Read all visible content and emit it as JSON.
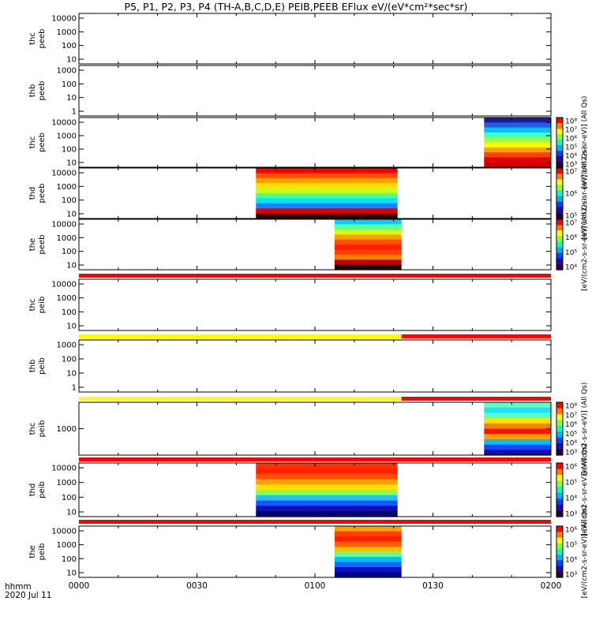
{
  "title": "P5, P1, P2, P3, P4 (TH-A,B,C,D,E) PEIB,PEEB EFlux eV/(eV*cm²*sec*sr)",
  "footer": {
    "time_format": "hhmm",
    "date": "2020 Jul 11"
  },
  "chart_data": {
    "type": "heatmap",
    "x_ticks": [
      "0000",
      "0030",
      "0100",
      "0130",
      "0200"
    ],
    "x_range_minutes": [
      0,
      120
    ],
    "panels": [
      {
        "id": "thc-peeb",
        "labels": [
          "thc",
          "peeb"
        ],
        "yticks": [
          "10",
          "100",
          "1000",
          "10000"
        ],
        "blocks": []
      },
      {
        "id": "thb-peeb",
        "labels": [
          "thb",
          "peeb"
        ],
        "yticks": [
          "1",
          "10",
          "100",
          "1000"
        ],
        "blocks": []
      },
      {
        "id": "thc-peeb-2",
        "labels": [
          "thc",
          "peeb"
        ],
        "yticks": [
          "10",
          "100",
          "1000",
          "10000"
        ],
        "blocks": [
          {
            "start": 103,
            "end": 120,
            "profile": "electron_c"
          }
        ],
        "colorbar": {
          "ticks": [
            "10⁸",
            "10⁷",
            "10⁶",
            "10⁵",
            "10⁴",
            "10³"
          ],
          "label": "[eV/(cm2-s-sr-eV)] (All Qs)"
        }
      },
      {
        "id": "thd-peeb",
        "labels": [
          "thd",
          "peeb"
        ],
        "yticks": [
          "10",
          "100",
          "1000",
          "10000"
        ],
        "blocks": [
          {
            "start": 45,
            "end": 81,
            "profile": "electron_d"
          }
        ],
        "colorbar": {
          "ticks": [
            "10⁷",
            "10⁶",
            "10⁵"
          ],
          "label": "[eV/(cm2-s-sr-eV)] (All Qs)"
        }
      },
      {
        "id": "the-peeb",
        "labels": [
          "the",
          "peeb"
        ],
        "yticks": [
          "10",
          "100",
          "1000",
          "10000"
        ],
        "blocks": [
          {
            "start": 65,
            "end": 82,
            "profile": "electron_e"
          }
        ],
        "colorbar": {
          "ticks": [
            "10⁷",
            "10⁶",
            "10⁵",
            "10⁴"
          ],
          "label": "[eV/(cm2-s-sr-eV)] (All Qs)"
        }
      },
      {
        "id": "thc-peib",
        "labels": [
          "thc",
          "peib"
        ],
        "yticks": [
          "10",
          "100",
          "1000",
          "10000"
        ],
        "blocks": []
      },
      {
        "id": "thb-peib",
        "labels": [
          "thb",
          "peib"
        ],
        "yticks": [
          "1",
          "10",
          "100",
          "1000"
        ],
        "blocks": []
      },
      {
        "id": "thc-peib-2",
        "labels": [
          "thc",
          "peib"
        ],
        "yticks": [
          "1000"
        ],
        "blocks": [
          {
            "start": 103,
            "end": 120,
            "profile": "ion_c"
          }
        ],
        "colorbar": {
          "ticks": [
            "10⁸",
            "10⁷",
            "10⁶",
            "10⁵",
            "10⁴",
            "10³"
          ],
          "label": "[eV/(cm2-s-sr-eV)] (All Qs)"
        }
      },
      {
        "id": "thd-peib",
        "labels": [
          "thd",
          "peib"
        ],
        "yticks": [
          "10",
          "100",
          "1000",
          "10000"
        ],
        "blocks": [
          {
            "start": 45,
            "end": 81,
            "profile": "ion_d"
          }
        ],
        "colorbar": {
          "ticks": [
            "10⁶",
            "10⁵",
            "10⁴",
            "10³"
          ],
          "label": "[eV/(cm2-s-sr-eV)] (All Qs)"
        }
      },
      {
        "id": "the-peib",
        "labels": [
          "the",
          "peib"
        ],
        "yticks": [
          "10",
          "100",
          "1000",
          "10000"
        ],
        "blocks": [
          {
            "start": 65,
            "end": 82,
            "profile": "ion_e"
          }
        ],
        "colorbar": {
          "ticks": [
            "10⁶",
            "10⁵",
            "10⁴",
            "10³"
          ],
          "label": "[eV/(cm2-s-sr-eV)] (All Qs)"
        }
      }
    ],
    "status_bars": [
      {
        "after_panel": 4,
        "segments": [
          {
            "start": 0,
            "end": 120,
            "color": "#ff0000"
          }
        ]
      },
      {
        "after_panel": 5,
        "segments": [
          {
            "start": 0,
            "end": 82,
            "color": "#ffff00"
          },
          {
            "start": 82,
            "end": 120,
            "color": "#ff0000"
          }
        ]
      },
      {
        "after_panel": 6,
        "segments": [
          {
            "start": 0,
            "end": 82,
            "color": "#ffff00"
          },
          {
            "start": 82,
            "end": 120,
            "color": "#ff0000"
          }
        ]
      },
      {
        "after_panel": 7,
        "segments": [
          {
            "start": 0,
            "end": 120,
            "color": "#ff0000"
          }
        ]
      },
      {
        "after_panel": 8,
        "segments": [
          {
            "start": 0,
            "end": 120,
            "color": "#ff0000"
          }
        ]
      }
    ]
  }
}
